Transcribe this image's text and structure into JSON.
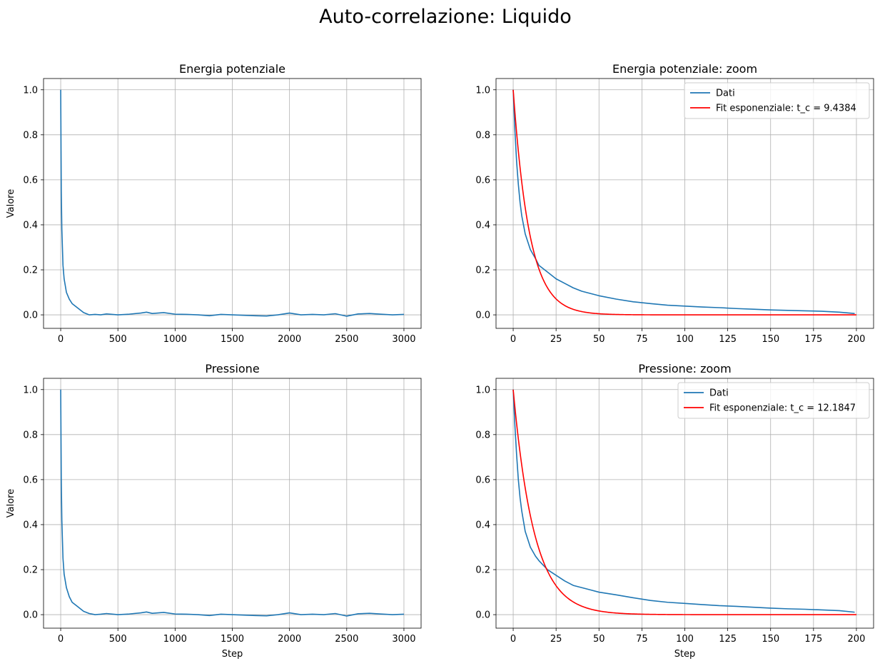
{
  "figure": {
    "suptitle": "Auto-correlazione: Liquido"
  },
  "colors": {
    "data": "#1f77b4",
    "fit": "#ff0000",
    "grid": "#b0b0b0"
  },
  "chart_data": [
    {
      "type": "line",
      "title": "Energia potenziale",
      "xlabel": "",
      "ylabel": "Valore",
      "xlim": [
        -150,
        3150
      ],
      "ylim": [
        -0.06,
        1.05
      ],
      "xticks": [
        0,
        500,
        1000,
        1500,
        2000,
        2500,
        3000
      ],
      "xtick_labels": [
        "0",
        "500",
        "1000",
        "1500",
        "2000",
        "2500",
        "3000"
      ],
      "yticks": [
        0.0,
        0.2,
        0.4,
        0.6,
        0.8,
        1.0
      ],
      "ytick_labels": [
        "0.0",
        "0.2",
        "0.4",
        "0.6",
        "0.8",
        "1.0"
      ],
      "grid": true,
      "legend": null,
      "series": [
        {
          "role": "data",
          "x": [
            0,
            5,
            10,
            20,
            30,
            50,
            75,
            100,
            150,
            200,
            250,
            300,
            350,
            400,
            500,
            600,
            700,
            750,
            800,
            900,
            1000,
            1100,
            1200,
            1300,
            1400,
            1500,
            1600,
            1700,
            1800,
            1900,
            2000,
            2100,
            2200,
            2300,
            2400,
            2500,
            2600,
            2700,
            2800,
            2900,
            3000
          ],
          "y": [
            1.0,
            0.55,
            0.38,
            0.22,
            0.16,
            0.1,
            0.07,
            0.05,
            0.03,
            0.01,
            0.0,
            0.002,
            0.0,
            0.004,
            0.0,
            0.003,
            0.008,
            0.012,
            0.006,
            0.01,
            0.003,
            0.002,
            0.0,
            -0.004,
            0.002,
            0.0,
            -0.002,
            -0.004,
            -0.005,
            0.0,
            0.008,
            0.0,
            0.002,
            0.0,
            0.005,
            -0.006,
            0.004,
            0.006,
            0.003,
            0.0,
            0.002
          ]
        }
      ]
    },
    {
      "type": "line",
      "title": "Energia potenziale: zoom",
      "xlabel": "",
      "ylabel": "",
      "xlim": [
        -10,
        210
      ],
      "ylim": [
        -0.06,
        1.05
      ],
      "xticks": [
        0,
        25,
        50,
        75,
        100,
        125,
        150,
        175,
        200
      ],
      "xtick_labels": [
        "0",
        "25",
        "50",
        "75",
        "100",
        "125",
        "150",
        "175",
        "200"
      ],
      "yticks": [
        0.0,
        0.2,
        0.4,
        0.6,
        0.8,
        1.0
      ],
      "ytick_labels": [
        "0.0",
        "0.2",
        "0.4",
        "0.6",
        "0.8",
        "1.0"
      ],
      "grid": true,
      "legend": "top-right",
      "series": [
        {
          "name": "Dati",
          "role": "data",
          "x": [
            0,
            1,
            2,
            3,
            4,
            5,
            7,
            10,
            13,
            15,
            20,
            25,
            30,
            35,
            40,
            45,
            50,
            60,
            70,
            80,
            90,
            100,
            110,
            120,
            130,
            140,
            150,
            160,
            170,
            180,
            190,
            199
          ],
          "y": [
            1.0,
            0.82,
            0.68,
            0.58,
            0.5,
            0.44,
            0.36,
            0.29,
            0.25,
            0.22,
            0.19,
            0.16,
            0.14,
            0.12,
            0.105,
            0.095,
            0.085,
            0.07,
            0.058,
            0.05,
            0.043,
            0.039,
            0.035,
            0.032,
            0.028,
            0.025,
            0.022,
            0.02,
            0.018,
            0.016,
            0.012,
            0.006
          ]
        },
        {
          "name": "Fit esponenziale: t_c = 9.4384",
          "role": "fit",
          "tc": 9.4384,
          "x": [
            0,
            200
          ]
        }
      ]
    },
    {
      "type": "line",
      "title": "Pressione",
      "xlabel": "Step",
      "ylabel": "Valore",
      "xlim": [
        -150,
        3150
      ],
      "ylim": [
        -0.06,
        1.05
      ],
      "xticks": [
        0,
        500,
        1000,
        1500,
        2000,
        2500,
        3000
      ],
      "xtick_labels": [
        "0",
        "500",
        "1000",
        "1500",
        "2000",
        "2500",
        "3000"
      ],
      "yticks": [
        0.0,
        0.2,
        0.4,
        0.6,
        0.8,
        1.0
      ],
      "ytick_labels": [
        "0.0",
        "0.2",
        "0.4",
        "0.6",
        "0.8",
        "1.0"
      ],
      "grid": true,
      "legend": null,
      "series": [
        {
          "role": "data",
          "x": [
            0,
            5,
            10,
            20,
            30,
            50,
            75,
            100,
            150,
            200,
            250,
            300,
            350,
            400,
            500,
            600,
            700,
            750,
            800,
            900,
            1000,
            1100,
            1200,
            1300,
            1400,
            1500,
            1600,
            1700,
            1800,
            1900,
            2000,
            2100,
            2200,
            2300,
            2400,
            2500,
            2600,
            2700,
            2800,
            2900,
            3000
          ],
          "y": [
            1.0,
            0.6,
            0.42,
            0.25,
            0.18,
            0.12,
            0.08,
            0.055,
            0.035,
            0.015,
            0.005,
            0.0,
            0.002,
            0.005,
            0.0,
            0.003,
            0.008,
            0.012,
            0.006,
            0.01,
            0.003,
            0.002,
            0.0,
            -0.004,
            0.002,
            0.0,
            -0.002,
            -0.004,
            -0.005,
            0.0,
            0.008,
            0.0,
            0.002,
            0.0,
            0.005,
            -0.006,
            0.004,
            0.006,
            0.003,
            0.0,
            0.002
          ]
        }
      ]
    },
    {
      "type": "line",
      "title": "Pressione: zoom",
      "xlabel": "Step",
      "ylabel": "",
      "xlim": [
        -10,
        210
      ],
      "ylim": [
        -0.06,
        1.05
      ],
      "xticks": [
        0,
        25,
        50,
        75,
        100,
        125,
        150,
        175,
        200
      ],
      "xtick_labels": [
        "0",
        "25",
        "50",
        "75",
        "100",
        "125",
        "150",
        "175",
        "200"
      ],
      "yticks": [
        0.0,
        0.2,
        0.4,
        0.6,
        0.8,
        1.0
      ],
      "ytick_labels": [
        "0.0",
        "0.2",
        "0.4",
        "0.6",
        "0.8",
        "1.0"
      ],
      "grid": true,
      "legend": "top-right",
      "series": [
        {
          "name": "Dati",
          "role": "data",
          "x": [
            0,
            1,
            2,
            3,
            4,
            5,
            7,
            10,
            13,
            15,
            20,
            25,
            30,
            35,
            40,
            45,
            50,
            60,
            70,
            80,
            90,
            100,
            110,
            120,
            130,
            140,
            150,
            160,
            170,
            180,
            190,
            199
          ],
          "y": [
            1.0,
            0.84,
            0.71,
            0.6,
            0.52,
            0.46,
            0.37,
            0.3,
            0.26,
            0.24,
            0.2,
            0.175,
            0.15,
            0.13,
            0.12,
            0.11,
            0.1,
            0.088,
            0.075,
            0.063,
            0.055,
            0.05,
            0.045,
            0.04,
            0.037,
            0.033,
            0.029,
            0.026,
            0.024,
            0.021,
            0.018,
            0.011
          ]
        },
        {
          "name": "Fit esponenziale: t_c = 12.1847",
          "role": "fit",
          "tc": 12.1847,
          "x": [
            0,
            200
          ]
        }
      ]
    }
  ]
}
